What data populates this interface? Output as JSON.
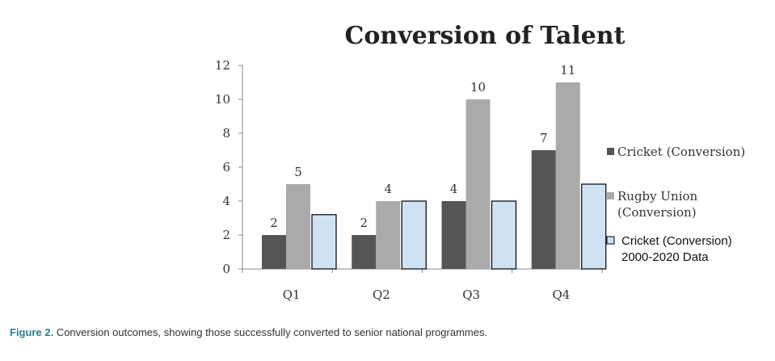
{
  "chart_data": {
    "type": "bar",
    "title": "Conversion of Talent",
    "categories": [
      "Q1",
      "Q2",
      "Q3",
      "Q4"
    ],
    "ylim": [
      0,
      12
    ],
    "yticks": [
      "0",
      "2",
      "4",
      "6",
      "8",
      "10",
      "12"
    ],
    "grid": false,
    "legend_position": "right",
    "series": [
      {
        "name": "Cricket (Conversion)",
        "values": [
          2,
          2,
          4,
          7
        ],
        "color": "#555555",
        "labels": [
          "2",
          "2",
          "4",
          "7"
        ]
      },
      {
        "name": "Rugby Union (Conversion)",
        "values": [
          5,
          4,
          10,
          11
        ],
        "color": "#aaaaaa",
        "labels": [
          "5",
          "4",
          "10",
          "11"
        ]
      },
      {
        "name": "Cricket (Conversion) 2000-2020 Data",
        "values": [
          3.2,
          4,
          4,
          5
        ],
        "color": "#cfe2f3",
        "labels": []
      }
    ],
    "legend": [
      {
        "lines": [
          "Cricket (Conversion)"
        ],
        "style": "serif",
        "color": "#555555"
      },
      {
        "lines": [
          "Rugby Union",
          "(Conversion)"
        ],
        "style": "serif",
        "color": "#aaaaaa"
      },
      {
        "lines": [
          "Cricket (Conversion)",
          "2000-2020 Data"
        ],
        "style": "sans",
        "color": "#cfe2f3"
      }
    ]
  },
  "caption": {
    "figure_label": "Figure 2.",
    "text": "Conversion outcomes, showing those successfully converted to senior national programmes."
  }
}
